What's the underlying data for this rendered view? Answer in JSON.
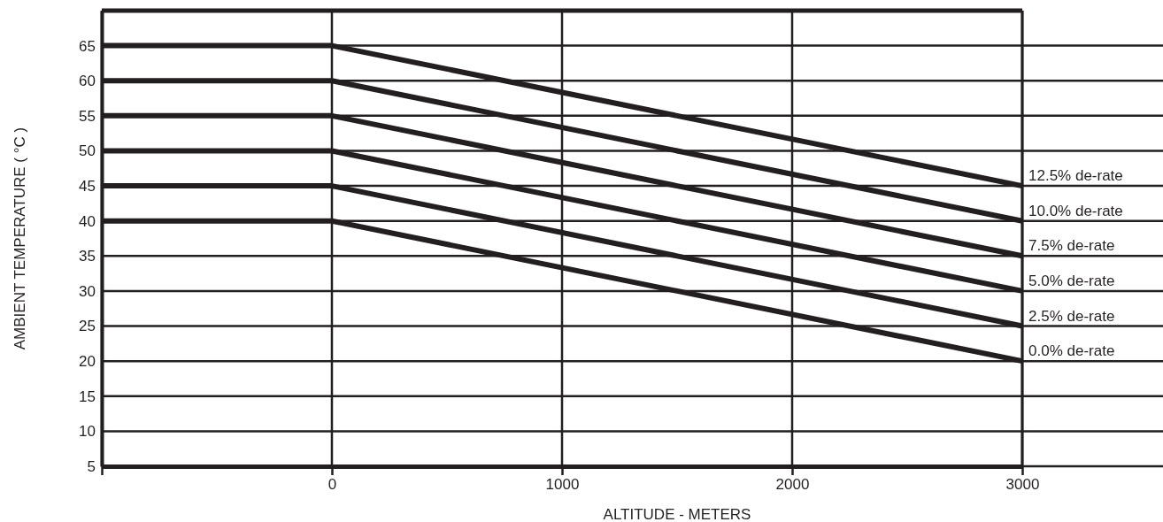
{
  "chart_data": {
    "type": "line",
    "xlabel": "ALTITUDE - METERS",
    "ylabel": "AMBIENT TEMPERATURE ( °C )",
    "x": [
      -1000,
      0,
      3000
    ],
    "xlim": [
      -1000,
      3000
    ],
    "xticks": [
      {
        "value": -1000,
        "label": null
      },
      0,
      1000,
      2000,
      3000
    ],
    "ylim": [
      5,
      70
    ],
    "yticks": [
      5,
      10,
      15,
      20,
      25,
      30,
      35,
      40,
      45,
      50,
      55,
      60,
      65
    ],
    "grid": true,
    "legend": false,
    "marker": "none",
    "line_style": "solid",
    "series": [
      {
        "name": "12.5% de-rate",
        "color": "#231f20",
        "values": [
          65,
          65,
          45
        ]
      },
      {
        "name": "10.0% de-rate",
        "color": "#231f20",
        "values": [
          60,
          60,
          40
        ]
      },
      {
        "name": "7.5% de-rate",
        "color": "#231f20",
        "values": [
          55,
          55,
          35
        ]
      },
      {
        "name": "5.0% de-rate",
        "color": "#231f20",
        "values": [
          50,
          50,
          30
        ]
      },
      {
        "name": "2.5% de-rate",
        "color": "#231f20",
        "values": [
          45,
          45,
          25
        ]
      },
      {
        "name": "0.0% de-rate",
        "color": "#231f20",
        "values": [
          40,
          40,
          20
        ]
      }
    ]
  }
}
